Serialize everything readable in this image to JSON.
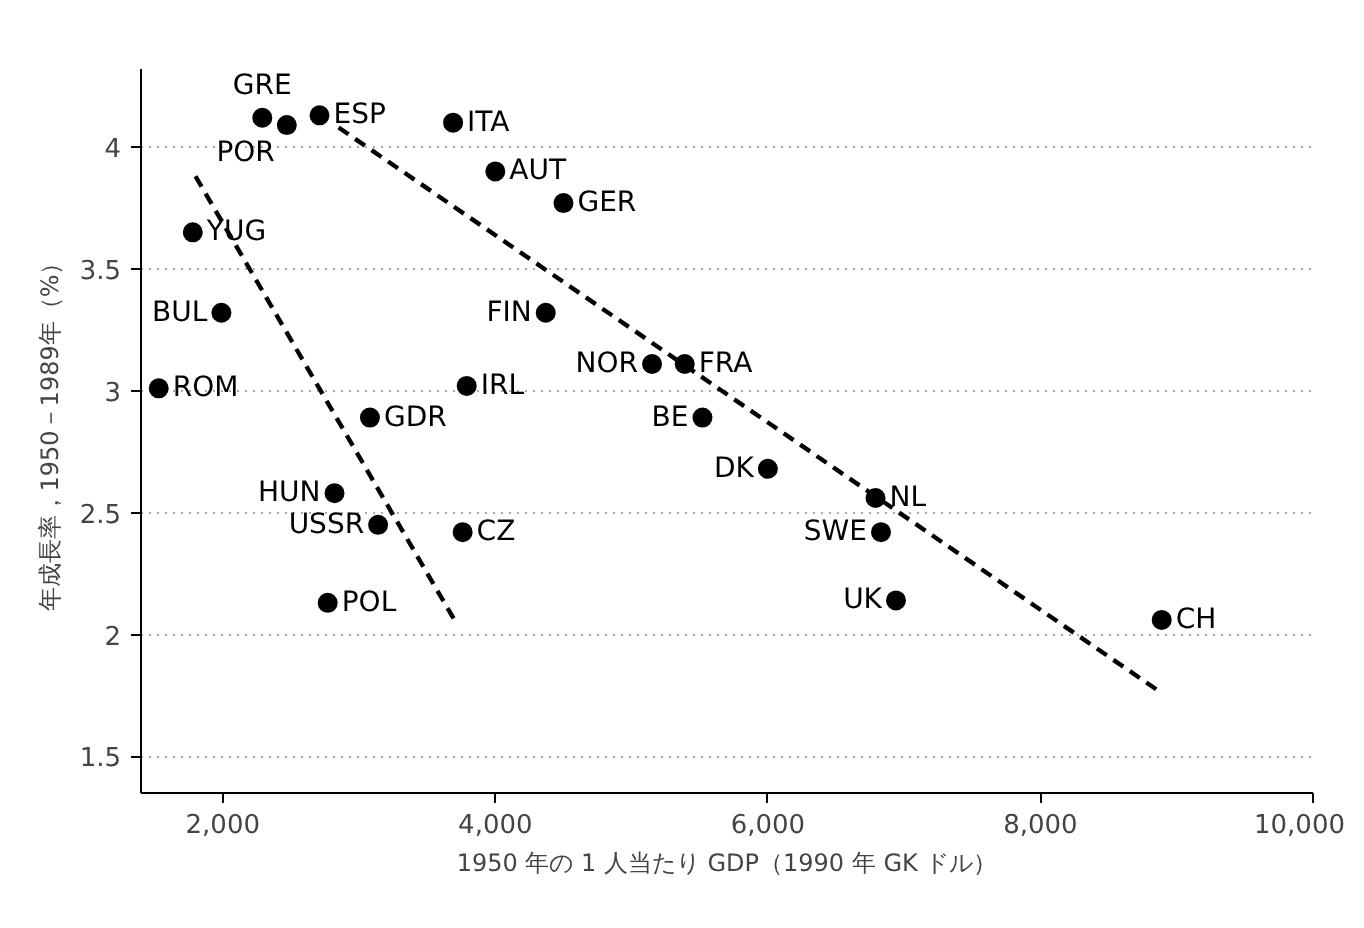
{
  "chart_data": {
    "type": "scatter",
    "xlabel": "1950 年の 1 人当たり GDP（1990 年 GK ドル）",
    "ylabel": "年成長率，1950－1989年（%）",
    "xlim": [
      1400,
      10000
    ],
    "ylim": [
      1.35,
      4.32
    ],
    "xticks": [
      {
        "value": 2000,
        "label": "2,000"
      },
      {
        "value": 4000,
        "label": "4,000"
      },
      {
        "value": 6000,
        "label": "6,000"
      },
      {
        "value": 8000,
        "label": "8,000"
      },
      {
        "value": 10000,
        "label": "10,000"
      }
    ],
    "yticks": [
      1.5,
      2,
      2.5,
      3,
      3.5,
      4
    ],
    "grid": "y",
    "marker": "circle",
    "series": [
      {
        "name": "GRE",
        "color": "#000000",
        "x": [
          2290
        ],
        "values": [
          4.12
        ]
      },
      {
        "name": "POR",
        "color": "#000000",
        "x": [
          2470
        ],
        "values": [
          4.09
        ]
      },
      {
        "name": "ESP",
        "color": "#000000",
        "x": [
          2710
        ],
        "values": [
          4.13
        ]
      },
      {
        "name": "ITA",
        "color": "#000000",
        "x": [
          3690
        ],
        "values": [
          4.1
        ]
      },
      {
        "name": "AUT",
        "color": "#000000",
        "x": [
          4000
        ],
        "values": [
          3.9
        ]
      },
      {
        "name": "GER",
        "color": "#000000",
        "x": [
          4500
        ],
        "values": [
          3.77
        ]
      },
      {
        "name": "YUG",
        "color": "#000000",
        "x": [
          1780
        ],
        "values": [
          3.65
        ]
      },
      {
        "name": "BUL",
        "color": "#000000",
        "x": [
          1990
        ],
        "values": [
          3.32
        ]
      },
      {
        "name": "FIN",
        "color": "#000000",
        "x": [
          4370
        ],
        "values": [
          3.32
        ]
      },
      {
        "name": "NOR",
        "color": "#000000",
        "x": [
          5150
        ],
        "values": [
          3.11
        ]
      },
      {
        "name": "FRA",
        "color": "#000000",
        "x": [
          5390
        ],
        "values": [
          3.11
        ]
      },
      {
        "name": "ROM",
        "color": "#000000",
        "x": [
          1530
        ],
        "values": [
          3.01
        ]
      },
      {
        "name": "IRL",
        "color": "#000000",
        "x": [
          3790
        ],
        "values": [
          3.02
        ]
      },
      {
        "name": "GDR",
        "color": "#000000",
        "x": [
          3080
        ],
        "values": [
          2.89
        ]
      },
      {
        "name": "BE",
        "color": "#000000",
        "x": [
          5520
        ],
        "values": [
          2.89
        ]
      },
      {
        "name": "DK",
        "color": "#000000",
        "x": [
          6000
        ],
        "values": [
          2.68
        ]
      },
      {
        "name": "HUN",
        "color": "#000000",
        "x": [
          2820
        ],
        "values": [
          2.58
        ]
      },
      {
        "name": "NL",
        "color": "#000000",
        "x": [
          6790
        ],
        "values": [
          2.56
        ]
      },
      {
        "name": "USSR",
        "color": "#000000",
        "x": [
          3140
        ],
        "values": [
          2.45
        ]
      },
      {
        "name": "CZ",
        "color": "#000000",
        "x": [
          3760
        ],
        "values": [
          2.42
        ]
      },
      {
        "name": "SWE",
        "color": "#000000",
        "x": [
          6830
        ],
        "values": [
          2.42
        ]
      },
      {
        "name": "UK",
        "color": "#000000",
        "x": [
          6940
        ],
        "values": [
          2.14
        ]
      },
      {
        "name": "POL",
        "color": "#000000",
        "x": [
          2770
        ],
        "values": [
          2.13
        ]
      },
      {
        "name": "CH",
        "color": "#000000",
        "x": [
          8890
        ],
        "values": [
          2.06
        ]
      },
      {
        "type": "line",
        "color": "#000000",
        "line_style": "dashed",
        "marker": "none",
        "x": [
          1800,
          3700
        ],
        "values": [
          3.88,
          2.06
        ]
      },
      {
        "type": "line",
        "color": "#000000",
        "line_style": "dashed",
        "marker": "none",
        "x": [
          2850,
          8890
        ],
        "values": [
          4.08,
          1.76
        ]
      }
    ]
  }
}
